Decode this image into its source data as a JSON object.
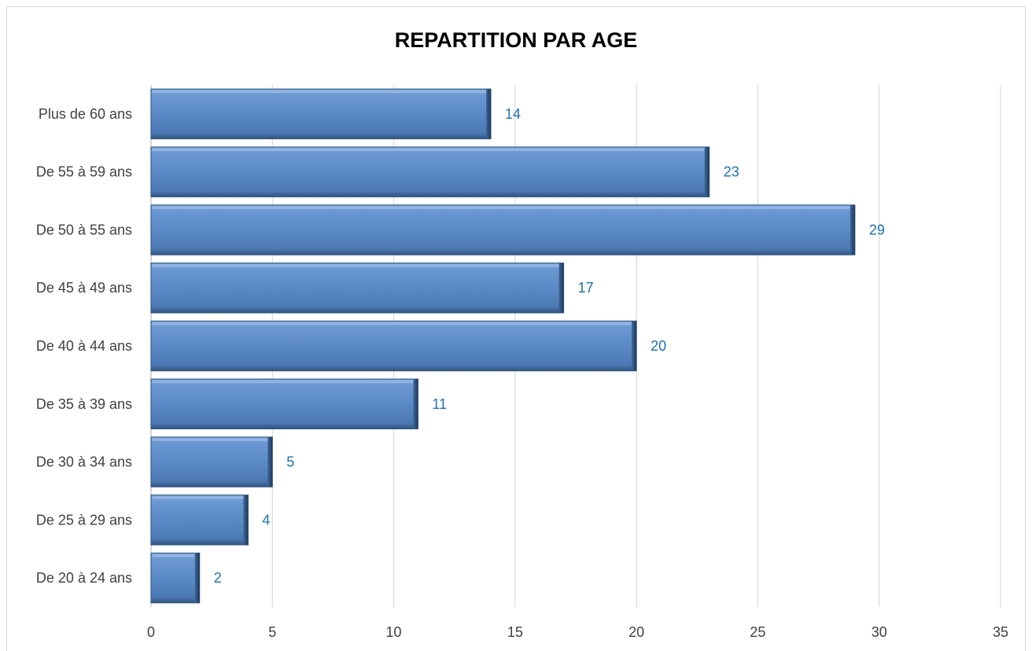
{
  "chart_data": {
    "type": "bar",
    "orientation": "horizontal",
    "title": "REPARTITION PAR AGE",
    "categories": [
      "De 20 à 24 ans",
      "De 25 à 29 ans",
      "De 30 à 34 ans",
      "De 35 à 39 ans",
      "De 40 à 44 ans",
      "De 45 à 49 ans",
      "De 50 à 55 ans",
      "De 55 à 59 ans",
      "Plus de 60 ans"
    ],
    "values": [
      2,
      4,
      5,
      11,
      20,
      17,
      29,
      23,
      14
    ],
    "xlim": [
      0,
      35
    ],
    "xticks": [
      0,
      5,
      10,
      15,
      20,
      25,
      30,
      35
    ],
    "grid": "vertical",
    "legend": "none",
    "bar_color": "#5a8ac6",
    "label_color": "#1f6fb4"
  }
}
